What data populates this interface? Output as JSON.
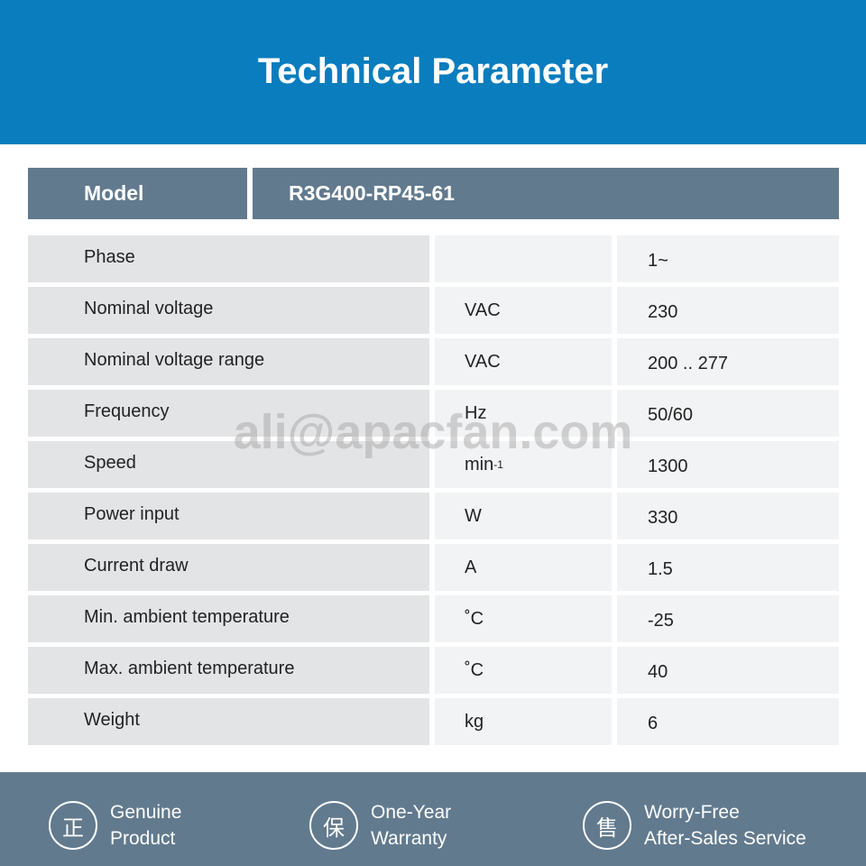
{
  "title": "Technical Parameter",
  "model": {
    "label": "Model",
    "value": "R3G400-RP45-61"
  },
  "rows": [
    {
      "name": "Phase",
      "unit": "",
      "value": "1~"
    },
    {
      "name": "Nominal voltage",
      "unit": "VAC",
      "value": "230"
    },
    {
      "name": "Nominal voltage range",
      "unit": "VAC",
      "value": "200 .. 277"
    },
    {
      "name": "Frequency",
      "unit": "Hz",
      "value": "50/60"
    },
    {
      "name": "Speed",
      "unit": "min",
      "unit_sup": "-1",
      "value": "1300"
    },
    {
      "name": "Power input",
      "unit": "W",
      "value": "330"
    },
    {
      "name": "Current draw",
      "unit": "A",
      "value": "1.5"
    },
    {
      "name": "Min. ambient temperature",
      "unit": "˚C",
      "value": "-25"
    },
    {
      "name": "Max. ambient temperature",
      "unit": "˚C",
      "value": "40"
    },
    {
      "name": "Weight",
      "unit": "kg",
      "value": "6"
    }
  ],
  "watermark": "ali@apacfan.com",
  "features": [
    {
      "icon": "正",
      "line1": "Genuine",
      "line2": "Product"
    },
    {
      "icon": "保",
      "line1": "One-Year",
      "line2": "Warranty"
    },
    {
      "icon": "售",
      "line1": "Worry-Free",
      "line2": "After-Sales Service"
    }
  ],
  "colors": {
    "banner": "#0a7dbe",
    "slate": "#627a8e",
    "label_cell": "#e3e4e6",
    "value_cell": "#f2f3f5"
  }
}
